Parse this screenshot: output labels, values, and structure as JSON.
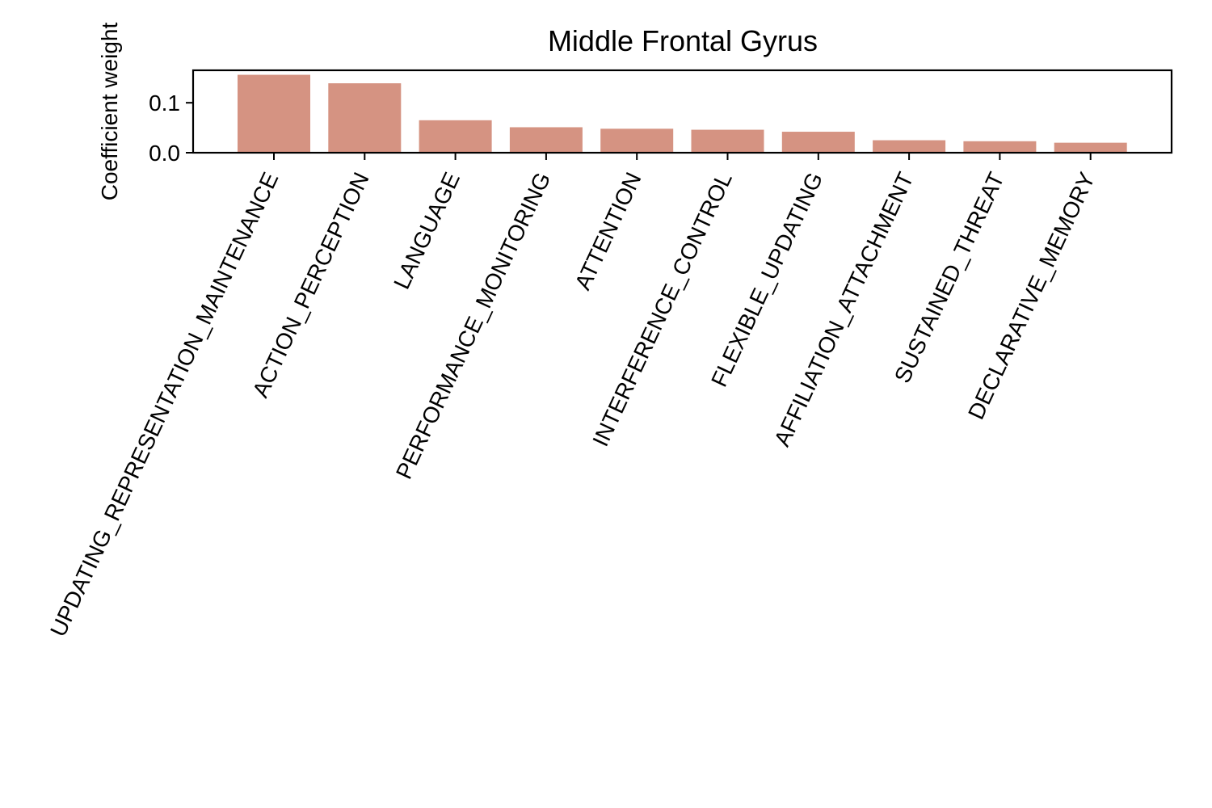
{
  "chart_data": {
    "type": "bar",
    "title": "Middle Frontal Gyrus",
    "xlabel": "",
    "ylabel": "Coefficient weight",
    "ylim": [
      0,
      0.165
    ],
    "yticks": [
      0.0,
      0.1
    ],
    "ytick_labels": [
      "0.0",
      "0.1"
    ],
    "grid": false,
    "bar_color": "#d59382",
    "categories": [
      "UPDATING_REPRESENTATION_MAINTENANCE",
      "ACTION_PERCEPTION",
      "LANGUAGE",
      "PERFORMANCE_MONITORING",
      "ATTENTION",
      "INTERFERENCE_CONTROL",
      "FLEXIBLE_UPDATING",
      "AFFILIATION_ATTACHMENT",
      "SUSTAINED_THREAT",
      "DECLARATIVE_MEMORY"
    ],
    "values": [
      0.156,
      0.139,
      0.065,
      0.051,
      0.048,
      0.046,
      0.042,
      0.025,
      0.023,
      0.02
    ]
  }
}
